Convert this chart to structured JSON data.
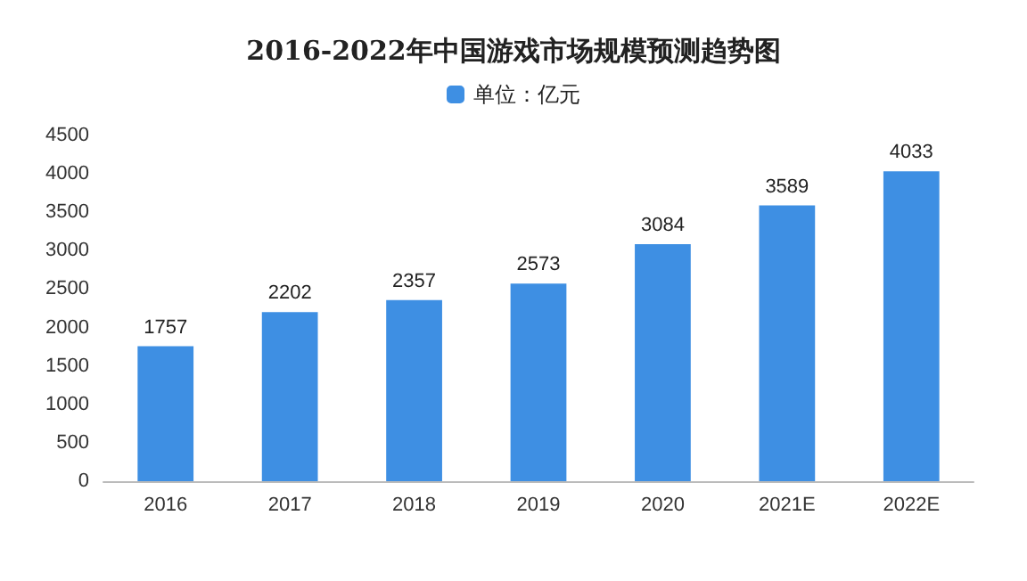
{
  "chart_data": {
    "type": "bar",
    "title": "2016-2022年中国游戏市场规模预测趋势图",
    "categories": [
      "2016",
      "2017",
      "2018",
      "2019",
      "2020",
      "2021E",
      "2022E"
    ],
    "series": [
      {
        "name": "单位：亿元",
        "color": "#3e8fe3",
        "values": [
          1757,
          2202,
          2357,
          2573,
          3084,
          3589,
          4033
        ]
      }
    ],
    "ylim": [
      0,
      4500
    ],
    "yticks": [
      0,
      500,
      1000,
      1500,
      2000,
      2500,
      3000,
      3500,
      4000,
      4500
    ],
    "data_labels": true,
    "legend": "top",
    "grid": false
  }
}
